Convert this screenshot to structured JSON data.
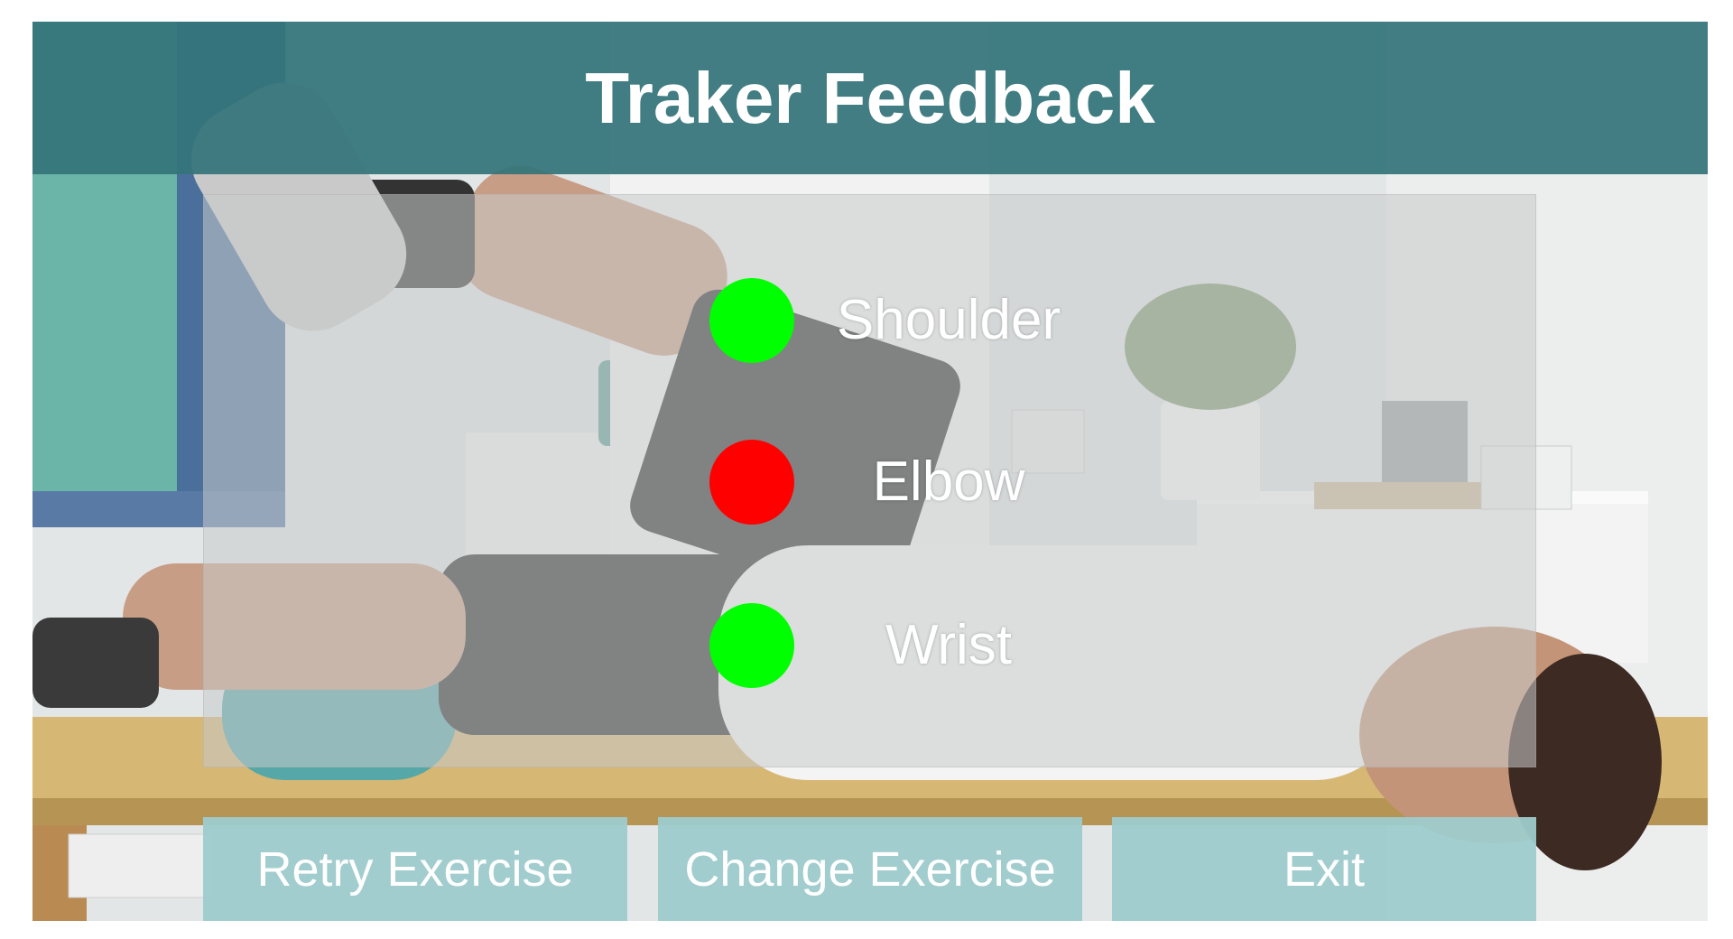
{
  "header": {
    "title": "Traker Feedback",
    "background_color": "#34747A"
  },
  "joints": [
    {
      "label": "Shoulder",
      "status": "ok",
      "color": "#00FF00"
    },
    {
      "label": "Elbow",
      "status": "error",
      "color": "#FF0000"
    },
    {
      "label": "Wrist",
      "status": "ok",
      "color": "#00FF00"
    }
  ],
  "buttons": {
    "retry_label": "Retry Exercise",
    "change_label": "Change Exercise",
    "exit_label": "Exit",
    "background_color": "#9ECBCC"
  },
  "background": {
    "icon": "physiotherapy-photo"
  }
}
